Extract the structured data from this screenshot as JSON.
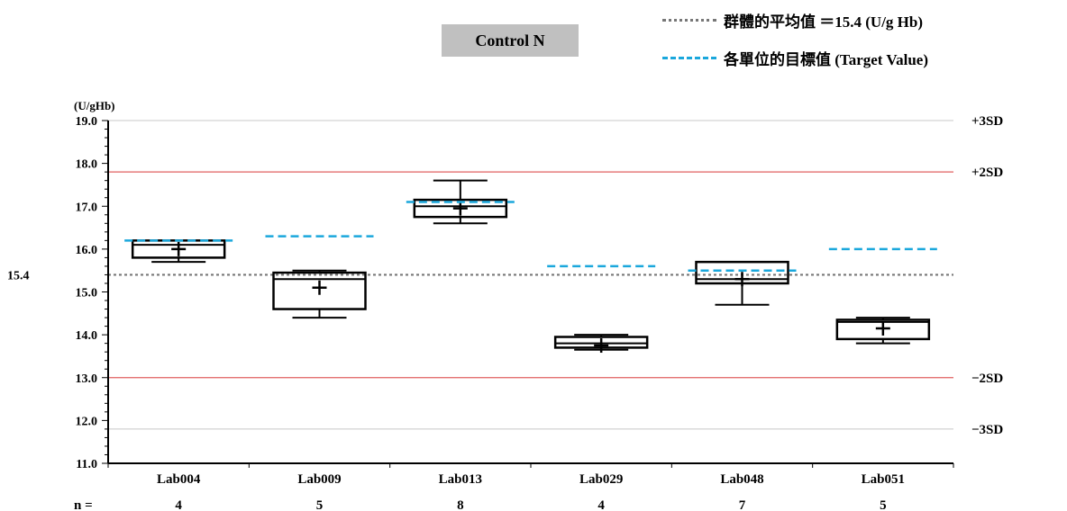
{
  "title": "Control N",
  "legend": {
    "mean_label": "群體的平均值 ＝15.4 (U/g Hb)",
    "target_label": "各單位的目標值 (Target Value)"
  },
  "colors": {
    "sd_line": "#e06060",
    "grid_line": "#c8c8c8",
    "target": "#1aa7dc",
    "mean": "#777777",
    "box": "#000000"
  },
  "chart_data": {
    "type": "boxplot",
    "title": "Control N",
    "ylabel": "(U/gHb)",
    "ylim": [
      11.0,
      19.0
    ],
    "yticks": [
      "11.0",
      "12.0",
      "13.0",
      "14.0",
      "15.0",
      "16.0",
      "17.0",
      "18.0",
      "19.0"
    ],
    "mean": 15.4,
    "mean_label": "15.4",
    "sd_lines": [
      {
        "label": "+3SD",
        "value": 19.0,
        "drawn": false
      },
      {
        "label": "+2SD",
        "value": 17.8,
        "drawn": true
      },
      {
        "label": "−2SD",
        "value": 13.0,
        "drawn": true
      },
      {
        "label": "−3SD",
        "value": 11.8,
        "drawn": false
      }
    ],
    "n_label": "n =",
    "categories": [
      "Lab004",
      "Lab009",
      "Lab013",
      "Lab029",
      "Lab048",
      "Lab051"
    ],
    "n": [
      "4",
      "5",
      "8",
      "4",
      "7",
      "5"
    ],
    "boxes": [
      {
        "min": 15.7,
        "q1": 15.8,
        "median": 16.1,
        "q3": 16.2,
        "max": 16.2,
        "mean": 16.0,
        "target": 16.2
      },
      {
        "min": 14.4,
        "q1": 14.6,
        "median": 15.3,
        "q3": 15.45,
        "max": 15.5,
        "mean": 15.1,
        "target": 16.3
      },
      {
        "min": 16.6,
        "q1": 16.75,
        "median": 17.0,
        "q3": 17.15,
        "max": 17.6,
        "mean": 16.95,
        "target": 17.1
      },
      {
        "min": 13.65,
        "q1": 13.7,
        "median": 13.8,
        "q3": 13.95,
        "max": 14.0,
        "mean": 13.75,
        "target": 15.6
      },
      {
        "min": 14.7,
        "q1": 15.2,
        "median": 15.3,
        "q3": 15.7,
        "max": 15.7,
        "mean": 15.3,
        "target": 15.5
      },
      {
        "min": 13.8,
        "q1": 13.9,
        "median": 14.3,
        "q3": 14.35,
        "max": 14.4,
        "mean": 14.15,
        "target": 16.0
      }
    ]
  }
}
